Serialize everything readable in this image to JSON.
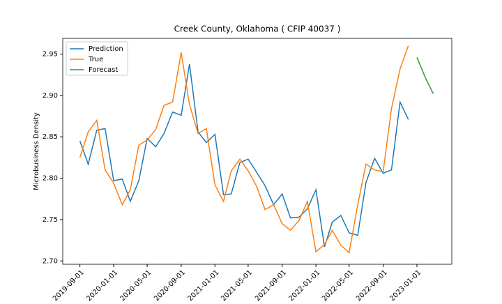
{
  "chart_data": {
    "type": "line",
    "title": "Creek County, Oklahoma ( CFIP 40037 )",
    "ylabel": "Microbusiness Density",
    "x": [
      "2019-09-01",
      "2019-10-01",
      "2019-11-01",
      "2019-12-01",
      "2020-01-01",
      "2020-02-01",
      "2020-03-01",
      "2020-04-01",
      "2020-05-01",
      "2020-06-01",
      "2020-07-01",
      "2020-08-01",
      "2020-09-01",
      "2020-10-01",
      "2020-11-01",
      "2020-12-01",
      "2021-01-01",
      "2021-02-01",
      "2021-03-01",
      "2021-04-01",
      "2021-05-01",
      "2021-06-01",
      "2021-07-01",
      "2021-08-01",
      "2021-09-01",
      "2021-10-01",
      "2021-11-01",
      "2021-12-01",
      "2022-01-01",
      "2022-02-01",
      "2022-03-01",
      "2022-04-01",
      "2022-05-01",
      "2022-06-01",
      "2022-07-01",
      "2022-08-01",
      "2022-09-01",
      "2022-10-01",
      "2022-11-01",
      "2022-12-01"
    ],
    "series": [
      {
        "name": "Prediction",
        "color": "#1f77b4",
        "values": [
          2.845,
          2.817,
          2.858,
          2.86,
          2.797,
          2.799,
          2.772,
          2.797,
          2.848,
          2.838,
          2.854,
          2.88,
          2.876,
          2.938,
          2.856,
          2.843,
          2.853,
          2.78,
          2.781,
          2.819,
          2.823,
          2.807,
          2.791,
          2.768,
          2.781,
          2.752,
          2.753,
          2.763,
          2.786,
          2.717,
          2.747,
          2.755,
          2.734,
          2.731,
          2.795,
          2.824,
          2.806,
          2.81,
          2.892,
          2.871
        ]
      },
      {
        "name": "True",
        "color": "#ff7f0e",
        "values": [
          2.825,
          2.856,
          2.87,
          2.81,
          2.794,
          2.768,
          2.786,
          2.84,
          2.846,
          2.859,
          2.888,
          2.892,
          2.952,
          2.889,
          2.854,
          2.86,
          2.792,
          2.772,
          2.809,
          2.823,
          2.809,
          2.79,
          2.762,
          2.768,
          2.745,
          2.737,
          2.749,
          2.772,
          2.711,
          2.72,
          2.737,
          2.719,
          2.71,
          2.768,
          2.817,
          2.81,
          2.808,
          2.884,
          2.932,
          2.96
        ]
      },
      {
        "name": "Forecast",
        "color": "#2ca02c",
        "x": [
          "2023-01-01",
          "2023-02-01",
          "2023-03-01"
        ],
        "values": [
          2.946,
          2.921,
          2.902
        ]
      }
    ],
    "xlim": [
      "2019-07-01",
      "2023-05-07"
    ],
    "xticks": [
      "2019-09-01",
      "2020-01-01",
      "2020-05-01",
      "2020-09-01",
      "2021-01-01",
      "2021-05-01",
      "2021-09-01",
      "2022-01-01",
      "2022-05-01",
      "2022-09-01",
      "2023-01-01"
    ],
    "ylim": [
      2.696,
      2.969
    ],
    "yticks": [
      {
        "value": 2.7,
        "label": "2.70"
      },
      {
        "value": 2.75,
        "label": "2.75"
      },
      {
        "value": 2.8,
        "label": "2.80"
      },
      {
        "value": 2.85,
        "label": "2.85"
      },
      {
        "value": 2.9,
        "label": "2.90"
      },
      {
        "value": 2.95,
        "label": "2.95"
      }
    ],
    "legend": "upper left"
  }
}
